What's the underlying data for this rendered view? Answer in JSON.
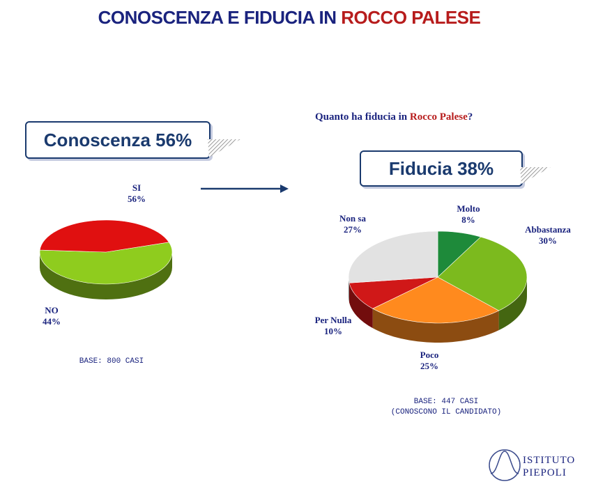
{
  "title": {
    "part1": "CONOSCENZA E FIDUCIA IN ",
    "part2": "ROCCO PALESE"
  },
  "question": {
    "part1": "Quanto ha fiducia in ",
    "part2": "Rocco Palese",
    "part3": "?"
  },
  "callout_left": {
    "label": "Conoscenza",
    "value": "56%"
  },
  "callout_right": {
    "label": "Fiducia",
    "value": "38%"
  },
  "base_left": "BASE: 800 CASI",
  "base_right": {
    "line1": "BASE: 447 CASI",
    "line2": "(CONOSCONO IL CANDIDATO)"
  },
  "logo": {
    "line1": "ISTITUTO",
    "line2": "PIEPOLI"
  },
  "colors": {
    "title": "#1a237e",
    "accent": "#b71c1c"
  },
  "chart_data": [
    {
      "type": "pie",
      "title": "",
      "slices": [
        {
          "label": "SI",
          "value": 56,
          "display": "56%",
          "color": "#8fcc1e"
        },
        {
          "label": "NO",
          "value": 44,
          "display": "44%",
          "color": "#e01010"
        }
      ]
    },
    {
      "type": "pie",
      "title": "",
      "slices": [
        {
          "label": "Molto",
          "value": 8,
          "display": "8%",
          "color": "#1e8a3a"
        },
        {
          "label": "Abbastanza",
          "value": 30,
          "display": "30%",
          "color": "#7cba1e"
        },
        {
          "label": "Poco",
          "value": 25,
          "display": "25%",
          "color": "#ff8a1e"
        },
        {
          "label": "Per Nulla",
          "value": 10,
          "display": "10%",
          "color": "#d01818"
        },
        {
          "label": "Non sa",
          "value": 27,
          "display": "27%",
          "color": "#e2e2e2"
        }
      ]
    }
  ]
}
